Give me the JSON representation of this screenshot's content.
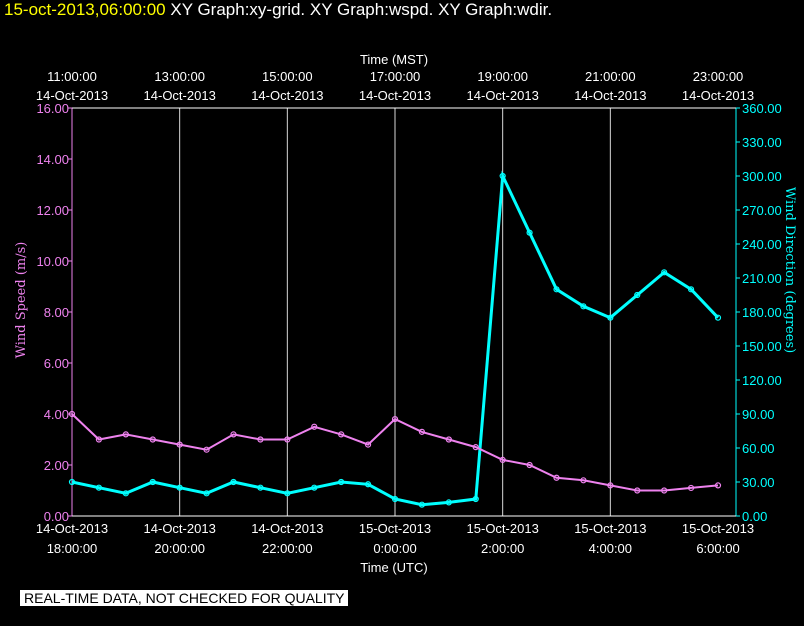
{
  "header": {
    "timestamp": "15-oct-2013,06:00:00",
    "graphs": "XY Graph:xy-grid.  XY Graph:wspd.  XY Graph:wdir."
  },
  "footer": {
    "note": "REAL-TIME DATA, NOT CHECKED FOR QUALITY"
  },
  "colors": {
    "wspd": "#ee82ee",
    "wdir": "#00ffff",
    "grid": "#ffffff"
  },
  "chart_data": {
    "type": "line",
    "x_top_title": "Time (MST)",
    "x_bottom_title": "Time (UTC)",
    "y_left_title": "Wind Speed (m/s)",
    "y_right_title": "Wind Direction (degrees)",
    "x_range_hours_utc": [
      18,
      30
    ],
    "top_ticks": [
      {
        "time": "11:00:00",
        "date": "14-Oct-2013"
      },
      {
        "time": "13:00:00",
        "date": "14-Oct-2013"
      },
      {
        "time": "15:00:00",
        "date": "14-Oct-2013"
      },
      {
        "time": "17:00:00",
        "date": "14-Oct-2013"
      },
      {
        "time": "19:00:00",
        "date": "14-Oct-2013"
      },
      {
        "time": "21:00:00",
        "date": "14-Oct-2013"
      },
      {
        "time": "23:00:00",
        "date": "14-Oct-2013"
      }
    ],
    "bottom_ticks": [
      {
        "date": "14-Oct-2013",
        "time": "18:00:00"
      },
      {
        "date": "14-Oct-2013",
        "time": "20:00:00"
      },
      {
        "date": "14-Oct-2013",
        "time": "22:00:00"
      },
      {
        "date": "15-Oct-2013",
        "time": "0:00:00"
      },
      {
        "date": "15-Oct-2013",
        "time": "2:00:00"
      },
      {
        "date": "15-Oct-2013",
        "time": "4:00:00"
      },
      {
        "date": "15-Oct-2013",
        "time": "6:00:00"
      }
    ],
    "y_left": {
      "ylim": [
        0,
        16
      ],
      "ticks": [
        "0.00",
        "2.00",
        "4.00",
        "6.00",
        "8.00",
        "10.00",
        "12.00",
        "14.00",
        "16.00"
      ]
    },
    "y_right": {
      "ylim": [
        0,
        360
      ],
      "ticks": [
        "0.00",
        "30.00",
        "60.00",
        "90.00",
        "120.00",
        "150.00",
        "180.00",
        "210.00",
        "240.00",
        "270.00",
        "300.00",
        "330.00",
        "360.00"
      ]
    },
    "series": [
      {
        "name": "wspd",
        "axis": "left",
        "x": [
          18,
          18.5,
          19,
          19.5,
          20,
          20.5,
          21,
          21.5,
          22,
          22.5,
          23,
          23.5,
          24,
          24.5,
          25,
          25.5,
          26,
          26.5,
          27,
          27.5,
          28,
          28.5,
          29,
          29.5,
          30
        ],
        "y": [
          4.0,
          3.0,
          3.2,
          3.0,
          2.8,
          2.6,
          3.2,
          3.0,
          3.0,
          3.5,
          3.2,
          2.8,
          3.8,
          3.3,
          3.0,
          2.7,
          2.2,
          2.0,
          1.5,
          1.4,
          1.2,
          1.0,
          1.0,
          1.1,
          1.2
        ]
      },
      {
        "name": "wdir",
        "axis": "right",
        "x": [
          18,
          18.5,
          19,
          19.5,
          20,
          20.5,
          21,
          21.5,
          22,
          22.5,
          23,
          23.5,
          24,
          24.5,
          25,
          25.5,
          26,
          26.5,
          27,
          27.5,
          28,
          28.5,
          29,
          29.5,
          30
        ],
        "y": [
          30,
          25,
          20,
          30,
          25,
          20,
          30,
          25,
          20,
          25,
          30,
          28,
          15,
          10,
          12,
          15,
          300,
          250,
          200,
          185,
          175,
          195,
          215,
          200,
          175
        ]
      }
    ]
  }
}
